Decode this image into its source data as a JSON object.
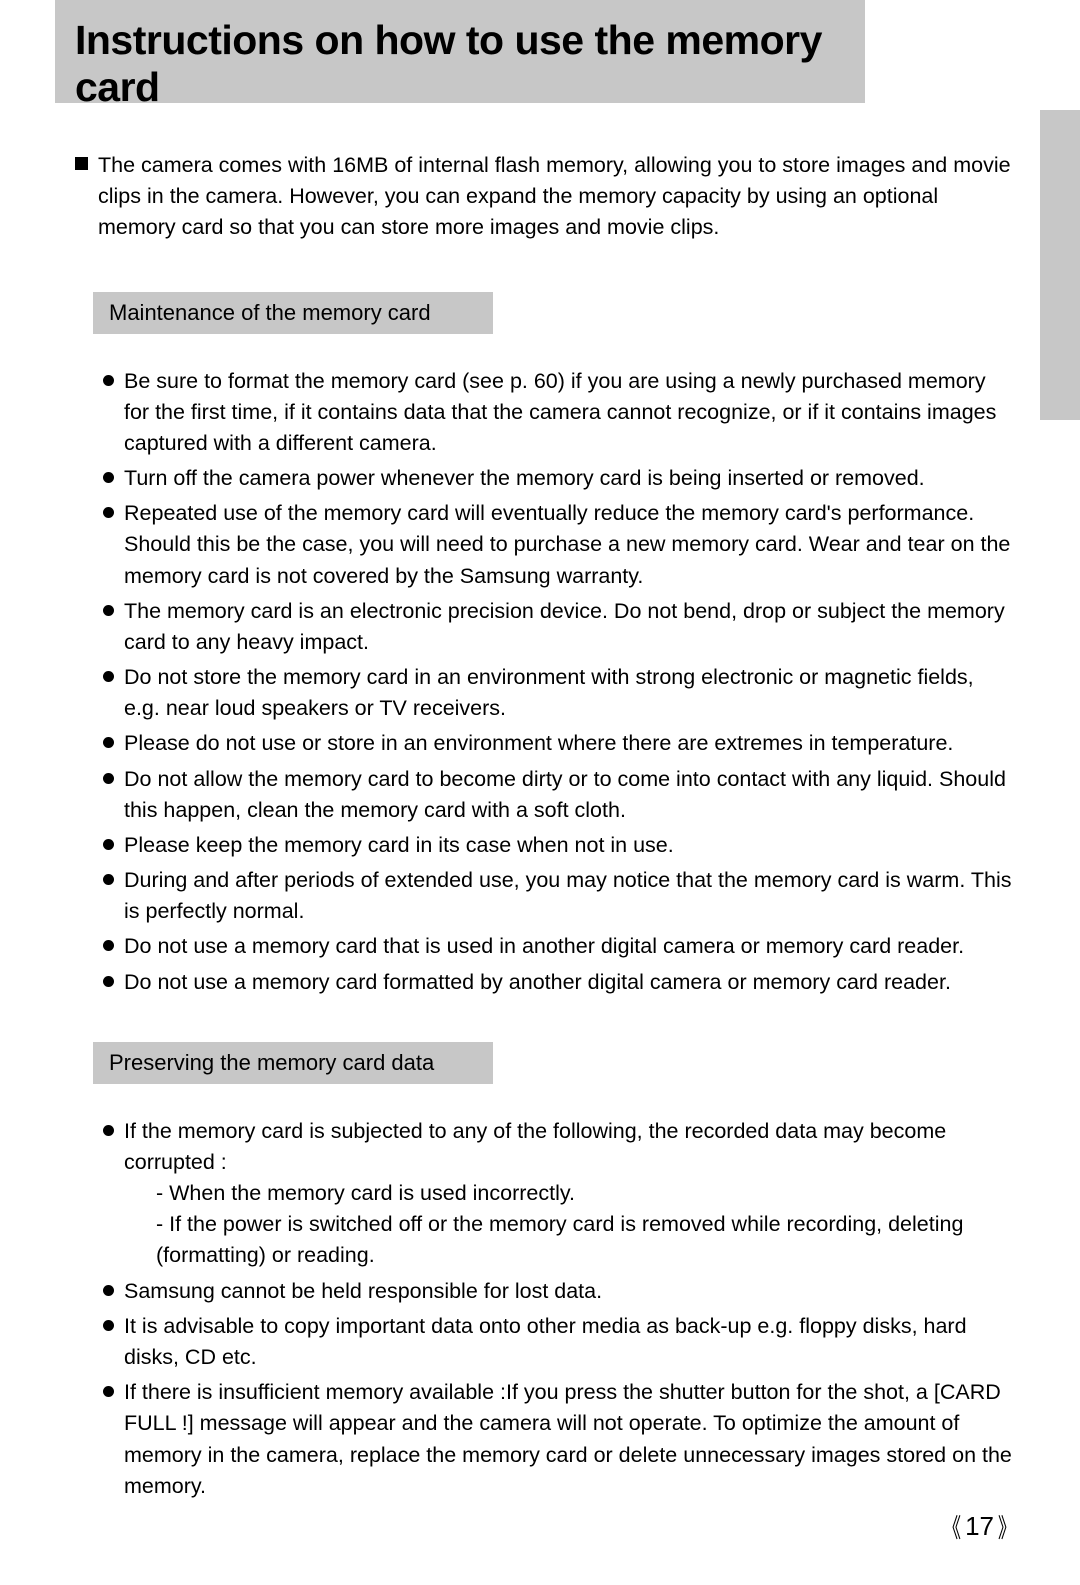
{
  "colors": {
    "header_bg": "#c7c7c7",
    "side_tab_bg": "#c7c7c7",
    "section_heading_bg": "#c7c7c7",
    "page_bg": "#ffffff",
    "text": "#000000",
    "bullet": "#000000"
  },
  "title": "Instructions on how to use the memory card",
  "intro": "The camera comes with 16MB of internal flash memory, allowing you to store images and movie clips in the camera. However, you can expand the memory capacity by using an optional memory card so that you can store more images and movie clips.",
  "sections": [
    {
      "heading": "Maintenance of the memory card",
      "items": [
        {
          "text": "Be sure to format the memory card (see p. 60) if you are using a newly purchased memory for the first time, if it contains data that the camera cannot recognize, or if it contains images captured with a different camera."
        },
        {
          "text": "Turn off the camera power whenever the memory card is being inserted or removed."
        },
        {
          "text": "Repeated use of the memory card will eventually reduce the memory card's performance. Should this be the case, you will need to purchase a new memory card. Wear and tear on the memory card is not covered by the Samsung warranty."
        },
        {
          "text": "The memory card is an electronic precision device. Do not bend, drop or subject the memory card to any heavy impact."
        },
        {
          "text": "Do not store the memory card in an environment with strong electronic or magnetic fields, e.g. near loud speakers or TV receivers."
        },
        {
          "text": "Please do not use or store in an environment where there are extremes in temperature."
        },
        {
          "text": "Do not allow the memory card to become dirty or to come into contact with any liquid. Should this happen, clean the memory card with a soft cloth."
        },
        {
          "text": "Please keep the memory card in its case when not in use."
        },
        {
          "text": "During and after periods of extended use, you may notice that the memory card is warm. This is perfectly normal."
        },
        {
          "text": "Do not use a memory card that is used in another digital camera or memory card reader."
        },
        {
          "text": "Do not use a memory card formatted by another digital camera or memory card reader."
        }
      ]
    },
    {
      "heading": "Preserving the memory card data",
      "items": [
        {
          "text": "If the memory card is subjected to any of the following, the recorded data may become corrupted :",
          "subitems": [
            "- When the memory card is used incorrectly.",
            "- If the power is switched off or the memory card is removed while recording, deleting (formatting) or reading."
          ]
        },
        {
          "text": "Samsung cannot be held responsible for lost data."
        },
        {
          "text": "It is advisable to copy important data onto other media as back-up e.g. floppy disks, hard disks, CD etc."
        },
        {
          "text": "If there is insufficient memory available :If you press the shutter button for the shot, a [CARD FULL !] message will appear and the camera will not operate. To optimize the amount of memory in the camera, replace the memory card or delete unnecessary images stored on the memory."
        }
      ]
    }
  ],
  "page_number": "17",
  "page_number_left_mark": "《",
  "page_number_right_mark": "》"
}
